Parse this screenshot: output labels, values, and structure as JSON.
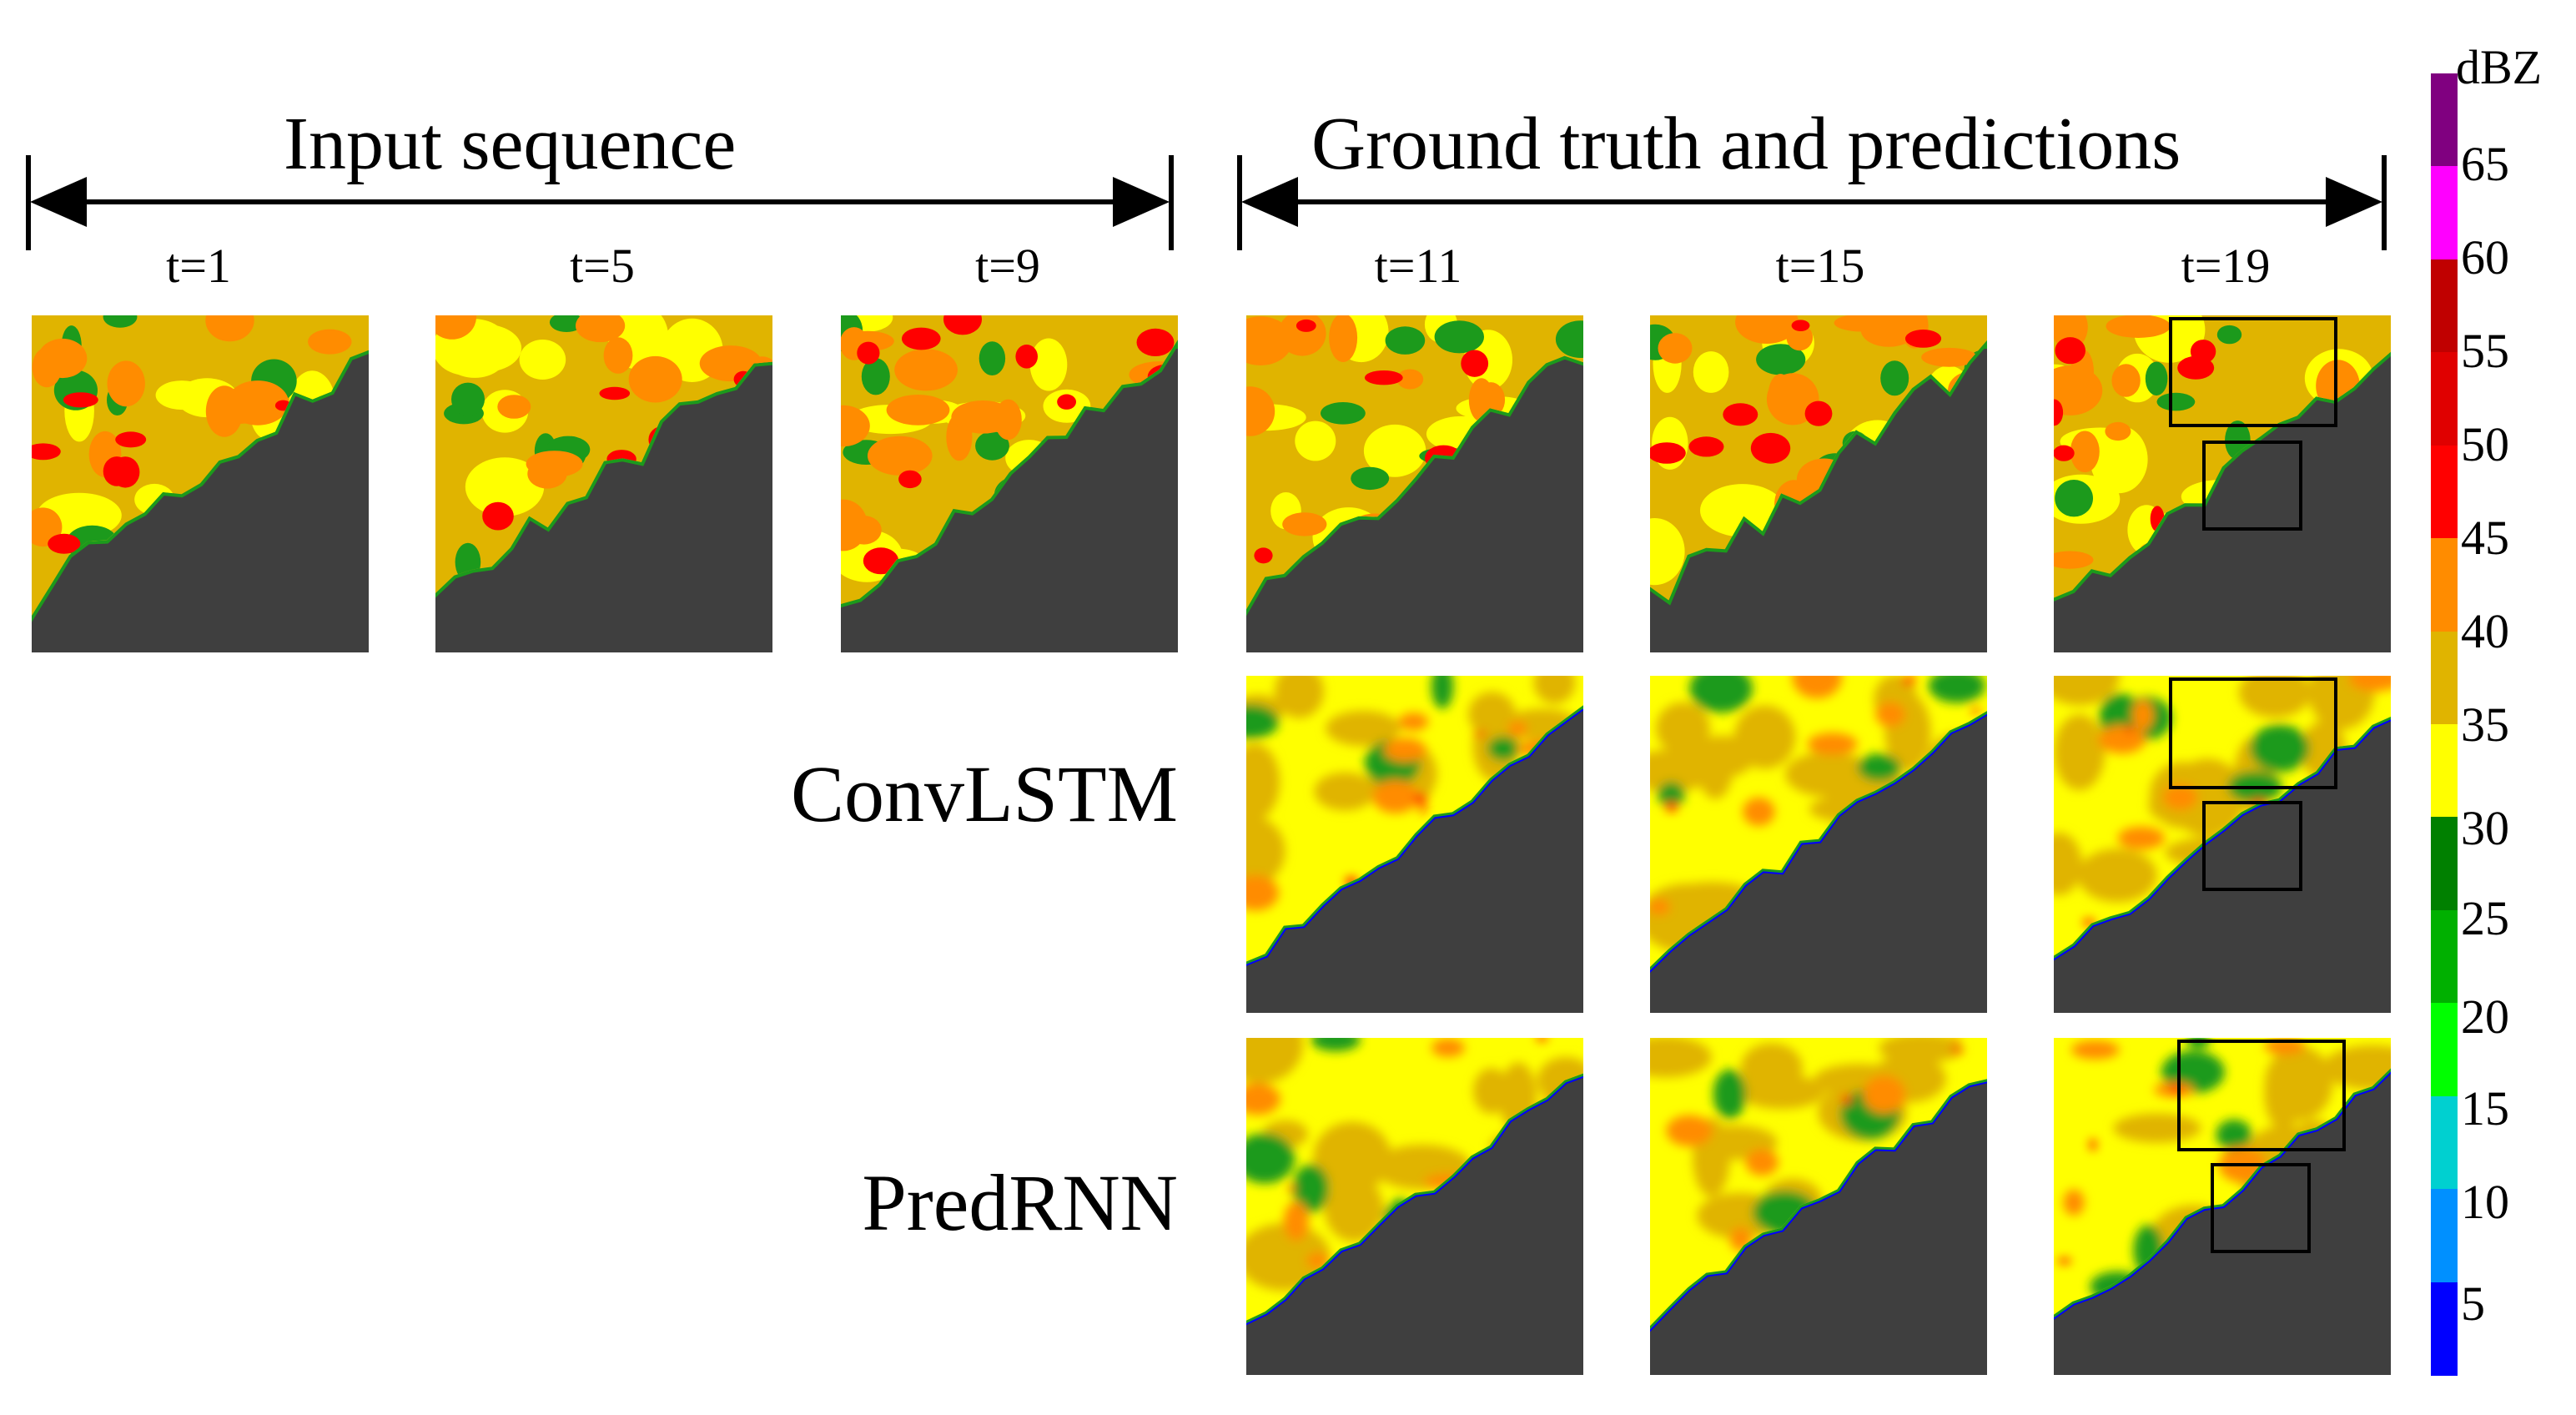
{
  "headers": {
    "input": "Input sequence",
    "ground": "Ground truth and predictions"
  },
  "times": {
    "t1": "t=1",
    "t5": "t=5",
    "t9": "t=9",
    "t11": "t=11",
    "t15": "t=15",
    "t19": "t=19"
  },
  "rows": {
    "convlstm": "ConvLSTM",
    "predrnn": "PredRNN"
  },
  "colorbar": {
    "unit": "dBZ",
    "ticks": [
      "65",
      "60",
      "55",
      "50",
      "45",
      "40",
      "35",
      "30",
      "25",
      "20",
      "15",
      "10",
      "5"
    ],
    "colors": [
      "#800080",
      "#ff00ff",
      "#c00000",
      "#e00000",
      "#ff0000",
      "#ff8c00",
      "#e0b400",
      "#ffff00",
      "#008000",
      "#00b000",
      "#00ff00",
      "#00d0d0",
      "#0090ff",
      "#0000ff"
    ]
  },
  "panel_colors": {
    "background": "#3f3f3f",
    "low": "#0000ff",
    "green": "#1c9a1c",
    "yellow": "#ffff00",
    "gold": "#e0b400",
    "orange": "#ff8c00",
    "red": "#ff0000"
  }
}
